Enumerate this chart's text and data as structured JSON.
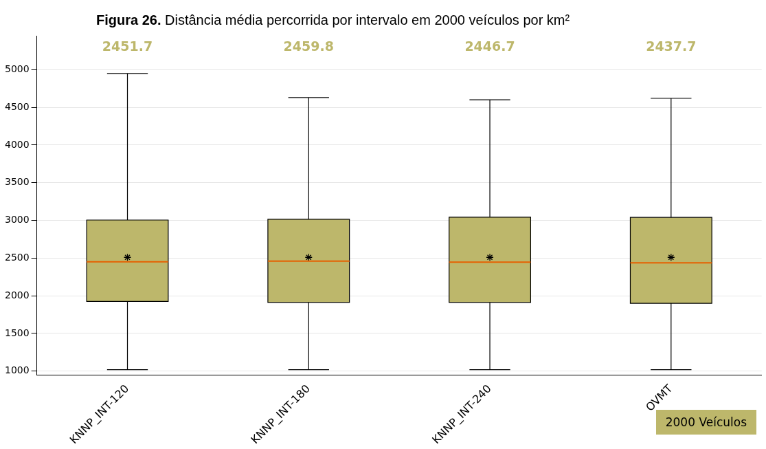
{
  "chart_data": {
    "type": "box",
    "title": "Figura 26. Distância média percorrida por intervalo em 2000 veículos por km²",
    "categories": [
      "KNNP_INT-120",
      "KNNP_INT-180",
      "KNNP_INT-240",
      "OVMT"
    ],
    "series": [
      {
        "name": "2000 Veículos",
        "color": "#bdb76b",
        "boxes": [
          {
            "low": 1020,
            "q1": 1925,
            "median": 2451.7,
            "q3": 3005,
            "high": 4950,
            "mean": 2510
          },
          {
            "low": 1020,
            "q1": 1912,
            "median": 2459.8,
            "q3": 3015,
            "high": 4630,
            "mean": 2510
          },
          {
            "low": 1020,
            "q1": 1912,
            "median": 2446.7,
            "q3": 3043,
            "high": 4600,
            "mean": 2510
          },
          {
            "low": 1020,
            "q1": 1900,
            "median": 2437.7,
            "q3": 3040,
            "high": 4620,
            "mean": 2510
          }
        ]
      }
    ],
    "annotations": [
      "2451.7",
      "2459.8",
      "2446.7",
      "2437.7"
    ],
    "ylim": [
      950,
      5450
    ],
    "yticks": [
      1000,
      1500,
      2000,
      2500,
      3000,
      3500,
      4000,
      4500,
      5000
    ],
    "grid": "y",
    "legend": "bottom right",
    "marker": "star"
  }
}
